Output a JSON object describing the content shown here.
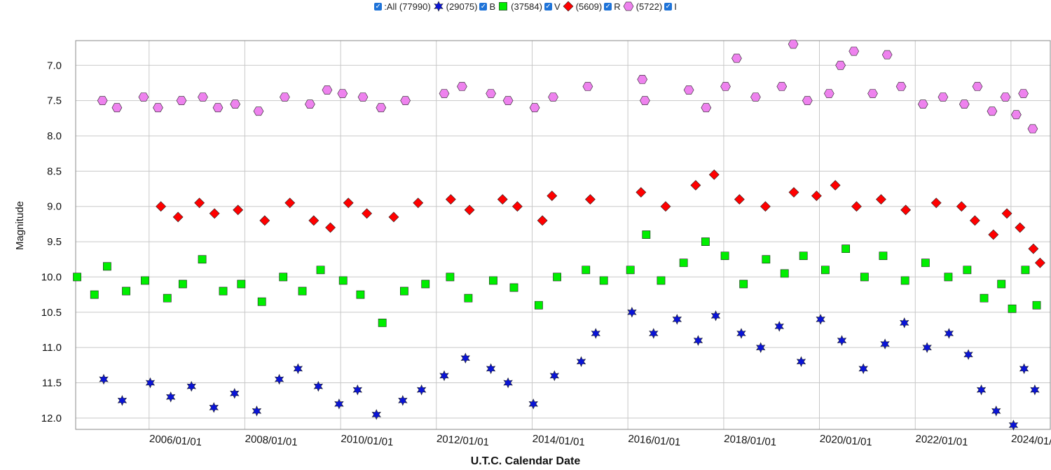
{
  "chart_data": {
    "type": "scatter",
    "legend_all_label": ":All (77990)",
    "xlabel": "U.T.C. Calendar Date",
    "ylabel": "Magnitude",
    "xlim": [
      "2004-06-20",
      "2024-10-27"
    ],
    "xticks": [
      {
        "value": "2006-01-01",
        "label": "2006/01/01"
      },
      {
        "value": "2008-01-01",
        "label": "2008/01/01"
      },
      {
        "value": "2010-01-01",
        "label": "2010/01/01"
      },
      {
        "value": "2012-01-01",
        "label": "2012/01/01"
      },
      {
        "value": "2014-01-01",
        "label": "2014/01/01"
      },
      {
        "value": "2016-01-01",
        "label": "2016/01/01"
      },
      {
        "value": "2018-01-01",
        "label": "2018/01/01"
      },
      {
        "value": "2020-01-01",
        "label": "2020/01/01"
      },
      {
        "value": "2022-01-01",
        "label": "2022/01/01"
      },
      {
        "value": "2024-01-01",
        "label": "2024/01/01"
      }
    ],
    "ylim": [
      12.16,
      6.65
    ],
    "yticks": [
      {
        "value": 7,
        "label": "7.0"
      },
      7.5,
      {
        "value": 8,
        "label": "8.0"
      },
      8.5,
      {
        "value": 9,
        "label": "9.0"
      },
      9.5,
      {
        "value": 10,
        "label": "10.0"
      },
      10.5,
      {
        "value": 11,
        "label": "11.0"
      },
      11.5,
      {
        "value": 12,
        "label": "12.0"
      }
    ],
    "grid": true,
    "series": [
      {
        "name": "B",
        "count_label": "(29075)",
        "marker": "star",
        "color": "#0a14d8",
        "x": [
          "2005-01-20",
          "2005-06-10",
          "2006-01-10",
          "2006-06-15",
          "2006-11-20",
          "2007-05-10",
          "2007-10-15",
          "2008-04-01",
          "2008-09-20",
          "2009-02-10",
          "2009-07-15",
          "2009-12-20",
          "2010-05-10",
          "2010-10-01",
          "2011-04-20",
          "2011-09-10",
          "2012-03-01",
          "2012-08-10",
          "2013-02-20",
          "2013-07-01",
          "2014-01-10",
          "2014-06-20",
          "2015-01-10",
          "2015-05-01",
          "2016-02-01",
          "2016-07-15",
          "2017-01-10",
          "2017-06-20",
          "2017-11-01",
          "2018-05-15",
          "2018-10-10",
          "2019-03-01",
          "2019-08-15",
          "2020-01-10",
          "2020-06-20",
          "2020-12-01",
          "2021-05-15",
          "2021-10-10",
          "2022-04-01",
          "2022-09-15",
          "2023-02-10",
          "2023-05-20",
          "2023-09-10",
          "2024-01-20",
          "2024-04-10",
          "2024-07-01"
        ],
        "values": [
          11.45,
          11.75,
          11.5,
          11.7,
          11.55,
          11.85,
          11.65,
          11.9,
          11.45,
          11.3,
          11.55,
          11.8,
          11.6,
          11.95,
          11.75,
          11.6,
          11.4,
          11.15,
          11.3,
          11.5,
          11.8,
          11.4,
          11.2,
          10.8,
          10.5,
          10.8,
          10.6,
          10.9,
          10.55,
          10.8,
          11.0,
          10.7,
          11.2,
          10.6,
          10.9,
          11.3,
          10.95,
          10.65,
          11.0,
          10.8,
          11.1,
          11.6,
          11.9,
          12.1,
          11.3,
          11.6
        ]
      },
      {
        "name": "V",
        "count_label": "(37584)",
        "marker": "square",
        "color": "#00ee00",
        "x": [
          "2004-07-01",
          "2004-11-10",
          "2005-02-15",
          "2005-07-10",
          "2005-12-01",
          "2006-05-20",
          "2006-09-15",
          "2007-02-10",
          "2007-07-20",
          "2007-12-05",
          "2008-05-10",
          "2008-10-20",
          "2009-03-15",
          "2009-08-01",
          "2010-01-20",
          "2010-06-01",
          "2010-11-15",
          "2011-05-01",
          "2011-10-10",
          "2012-04-15",
          "2012-09-01",
          "2013-03-10",
          "2013-08-15",
          "2014-02-20",
          "2014-07-10",
          "2015-02-15",
          "2015-07-01",
          "2016-01-20",
          "2016-05-20",
          "2016-09-10",
          "2017-03-01",
          "2017-08-15",
          "2018-01-10",
          "2018-06-01",
          "2018-11-20",
          "2019-04-10",
          "2019-09-01",
          "2020-02-15",
          "2020-07-20",
          "2020-12-10",
          "2021-05-01",
          "2021-10-15",
          "2022-03-20",
          "2022-09-10",
          "2023-02-01",
          "2023-06-10",
          "2023-10-20",
          "2024-01-10",
          "2024-04-20",
          "2024-07-15"
        ],
        "values": [
          10.0,
          10.25,
          9.85,
          10.2,
          10.05,
          10.3,
          10.1,
          9.75,
          10.2,
          10.1,
          10.35,
          10.0,
          10.2,
          9.9,
          10.05,
          10.25,
          10.65,
          10.2,
          10.1,
          10.0,
          10.3,
          10.05,
          10.15,
          10.4,
          10.0,
          9.9,
          10.05,
          9.9,
          9.4,
          10.05,
          9.8,
          9.5,
          9.7,
          10.1,
          9.75,
          9.95,
          9.7,
          9.9,
          9.6,
          10.0,
          9.7,
          10.05,
          9.8,
          10.0,
          9.9,
          10.3,
          10.1,
          10.45,
          9.9,
          10.4
        ]
      },
      {
        "name": "R",
        "count_label": "(5609)",
        "marker": "diamond",
        "color": "#ff0000",
        "x": [
          "2006-04-01",
          "2006-08-10",
          "2007-01-20",
          "2007-05-15",
          "2007-11-10",
          "2008-06-01",
          "2008-12-10",
          "2009-06-10",
          "2009-10-15",
          "2010-03-01",
          "2010-07-20",
          "2011-02-10",
          "2011-08-15",
          "2012-04-20",
          "2012-09-10",
          "2013-05-20",
          "2013-09-10",
          "2014-03-20",
          "2014-06-01",
          "2015-03-20",
          "2016-04-10",
          "2016-10-15",
          "2017-06-01",
          "2017-10-20",
          "2018-05-01",
          "2018-11-15",
          "2019-06-20",
          "2019-12-10",
          "2020-05-01",
          "2020-10-10",
          "2021-04-15",
          "2021-10-20",
          "2022-06-10",
          "2022-12-20",
          "2023-04-01",
          "2023-08-20",
          "2023-12-01",
          "2024-03-10",
          "2024-06-20",
          "2024-08-10"
        ],
        "values": [
          9.0,
          9.15,
          8.95,
          9.1,
          9.05,
          9.2,
          8.95,
          9.2,
          9.3,
          8.95,
          9.1,
          9.15,
          8.95,
          8.9,
          9.05,
          8.9,
          9.0,
          9.2,
          8.85,
          8.9,
          8.8,
          9.0,
          8.7,
          8.55,
          8.9,
          9.0,
          8.8,
          8.85,
          8.7,
          9.0,
          8.9,
          9.05,
          8.95,
          9.0,
          9.2,
          9.4,
          9.1,
          9.3,
          9.6,
          9.8
        ]
      },
      {
        "name": "I",
        "count_label": "(5722)",
        "marker": "hexagon",
        "color": "#ee82ee",
        "x": [
          "2005-01-10",
          "2005-05-01",
          "2005-11-20",
          "2006-03-10",
          "2006-09-05",
          "2007-02-15",
          "2007-06-10",
          "2007-10-20",
          "2008-04-15",
          "2008-11-01",
          "2009-05-12",
          "2009-09-20",
          "2010-01-15",
          "2010-06-20",
          "2010-11-05",
          "2011-05-10",
          "2012-03-01",
          "2012-07-15",
          "2013-02-20",
          "2013-07-01",
          "2014-01-20",
          "2014-06-10",
          "2015-03-01",
          "2016-04-20",
          "2016-05-10",
          "2017-04-10",
          "2017-08-20",
          "2018-01-15",
          "2018-04-10",
          "2018-09-01",
          "2019-03-20",
          "2019-06-15",
          "2019-10-01",
          "2020-03-15",
          "2020-06-10",
          "2020-09-20",
          "2021-02-10",
          "2021-06-01",
          "2021-09-15",
          "2022-03-01",
          "2022-08-01",
          "2023-01-10",
          "2023-04-20",
          "2023-08-10",
          "2023-11-20",
          "2024-02-10",
          "2024-04-05",
          "2024-06-15"
        ],
        "values": [
          7.5,
          7.6,
          7.45,
          7.6,
          7.5,
          7.45,
          7.6,
          7.55,
          7.65,
          7.45,
          7.55,
          7.35,
          7.4,
          7.45,
          7.6,
          7.5,
          7.4,
          7.3,
          7.4,
          7.5,
          7.6,
          7.45,
          7.3,
          7.2,
          7.5,
          7.35,
          7.6,
          7.3,
          6.9,
          7.45,
          7.3,
          6.7,
          7.5,
          7.4,
          7.0,
          6.8,
          7.4,
          6.85,
          7.3,
          7.55,
          7.45,
          7.55,
          7.3,
          7.65,
          7.45,
          7.7,
          7.4,
          7.9
        ]
      }
    ]
  }
}
